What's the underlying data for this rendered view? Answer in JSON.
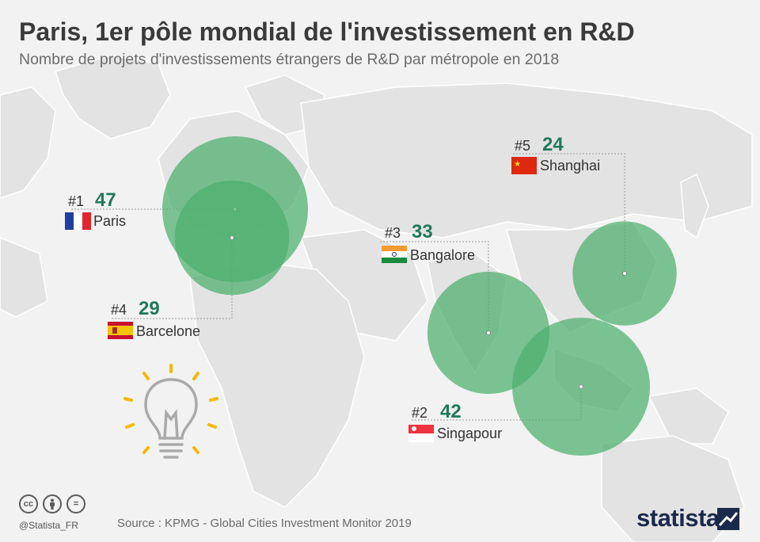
{
  "title": "Paris, 1er pôle mondial de l'investissement en R&D",
  "subtitle": "Nombre de projets d'investissements étrangers de R&D par métropole en 2018",
  "source": "Source : KPMG - Global Cities Investment Monitor 2019",
  "handle": "@Statista_FR",
  "brand": "statista",
  "cc_icons": [
    "cc",
    "person",
    "equals"
  ],
  "colors": {
    "bubble": "#4caf6e",
    "number": "#1f7a5a",
    "text": "#333333",
    "bulb": "#f5b800"
  },
  "chart_data": {
    "type": "scatter",
    "title": "Paris, 1er pôle mondial de l'investissement en R&D",
    "subtitle": "Nombre de projets d'investissements étrangers de R&D par métropole en 2018",
    "points": [
      {
        "rank": "#1",
        "city": "Paris",
        "value": 47,
        "flag": "france"
      },
      {
        "rank": "#2",
        "city": "Singapour",
        "value": 42,
        "flag": "singapore"
      },
      {
        "rank": "#3",
        "city": "Bangalore",
        "value": 33,
        "flag": "india"
      },
      {
        "rank": "#4",
        "city": "Barcelone",
        "value": 29,
        "flag": "spain"
      },
      {
        "rank": "#5",
        "city": "Shanghai",
        "value": 24,
        "flag": "china"
      }
    ]
  }
}
